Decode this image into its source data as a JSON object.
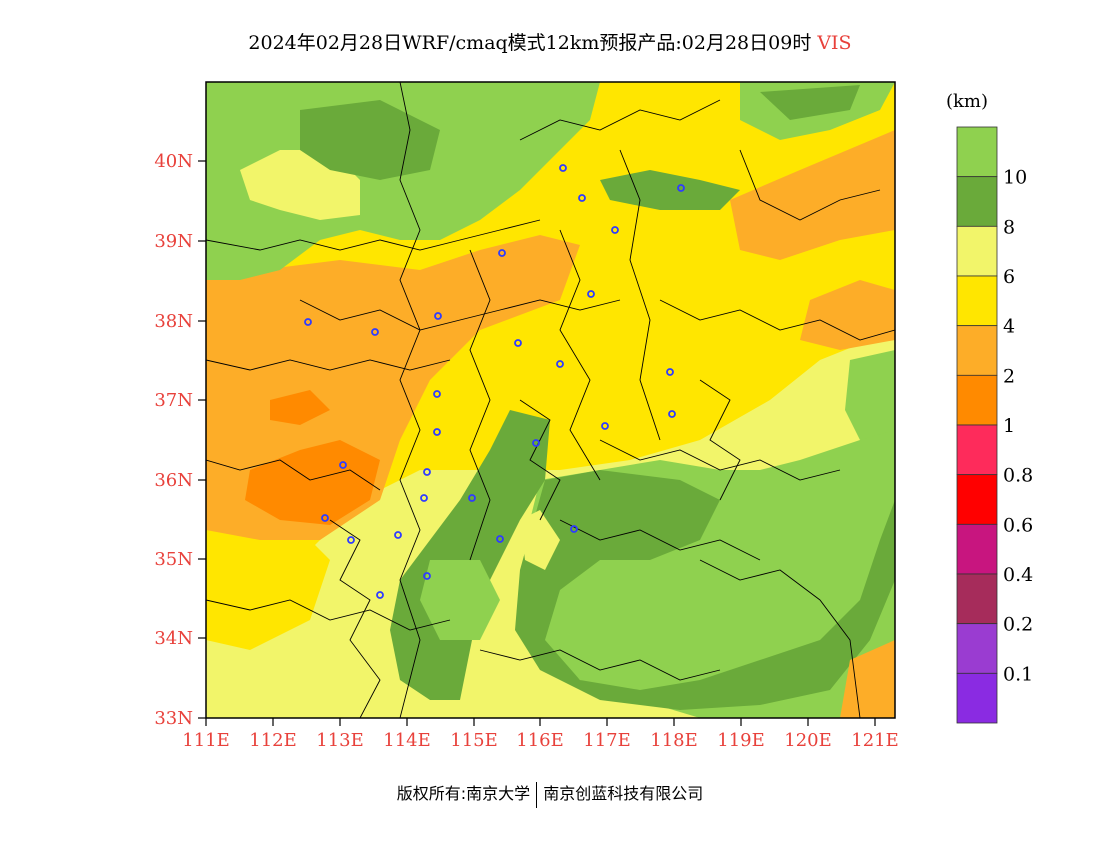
{
  "title": {
    "main": "2024年02月28日WRF/cmaq模式12km预报产品:02月28日09时",
    "variable": "VIS"
  },
  "map": {
    "lat_labels": [
      "40N",
      "39N",
      "38N",
      "37N",
      "36N",
      "35N",
      "34N",
      "33N"
    ],
    "lon_labels": [
      "111E",
      "112E",
      "113E",
      "114E",
      "115E",
      "116E",
      "117E",
      "118E",
      "119E",
      "120E",
      "121E"
    ],
    "colors": {
      "gt10": "#8fd14f",
      "8_10": "#6aaa3a",
      "6_8": "#f2f56a",
      "4_6": "#ffe600",
      "2_4": "#fdad28",
      "1_2": "#ff8a00",
      "city_marker": "#2f3cff",
      "tick_label": "#e8413b"
    }
  },
  "colorbar": {
    "unit": "(km)",
    "labels": [
      "10",
      "8",
      "6",
      "4",
      "2",
      "1",
      "0.8",
      "0.6",
      "0.4",
      "0.2",
      "0.1"
    ],
    "colors": [
      "#8fd14f",
      "#6aaa3a",
      "#f2f56a",
      "#ffe600",
      "#fdad28",
      "#ff8a00",
      "#fe2b5b",
      "#ff0000",
      "#c8157f",
      "#a62c5b",
      "#9a3cd1",
      "#8a2be2"
    ]
  },
  "footer": {
    "left": "版权所有:南京大学",
    "right": "南京创蓝科技有限公司"
  }
}
